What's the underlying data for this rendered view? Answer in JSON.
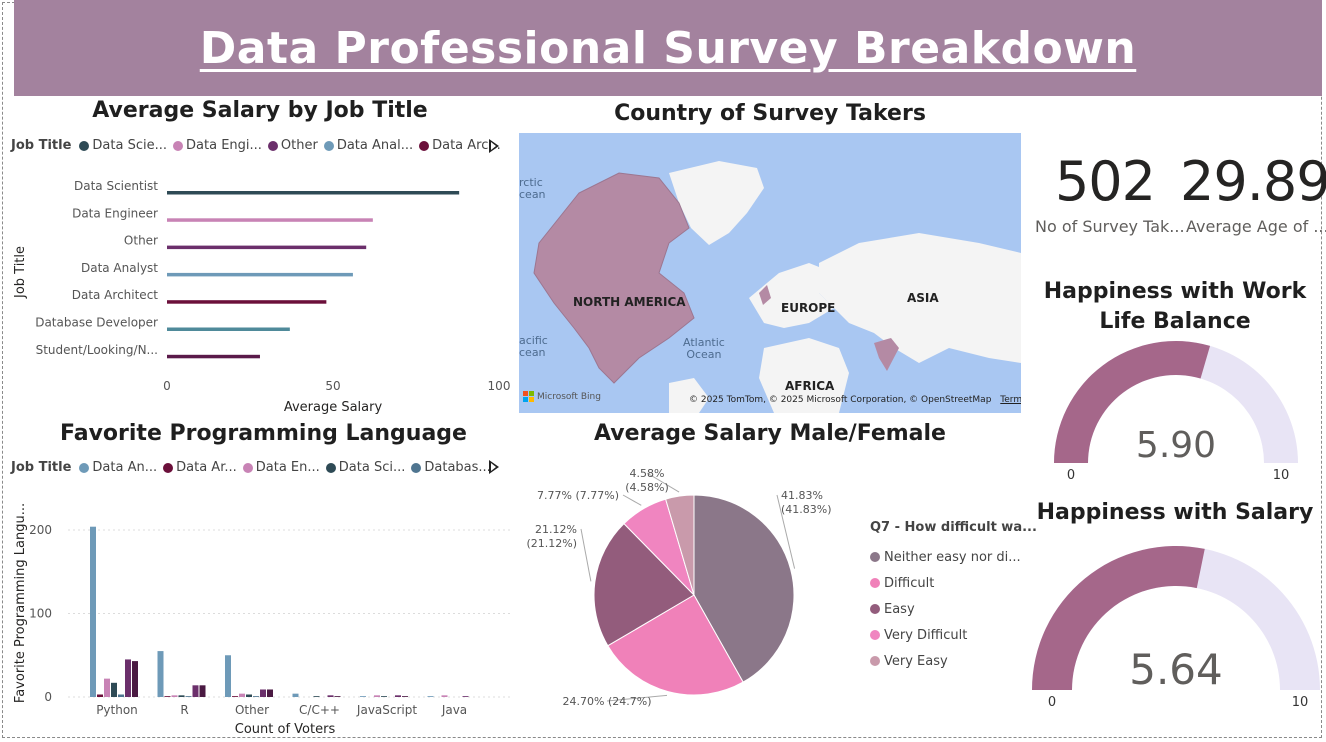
{
  "title": "Data Professional Survey Breakdown",
  "salary_by_job": {
    "title": "Average Salary by Job Title",
    "legend_title": "Job Title",
    "legend": [
      {
        "label": "Data Scie...",
        "color": "#2e4a55"
      },
      {
        "label": "Data Engi...",
        "color": "#c883b5"
      },
      {
        "label": "Other",
        "color": "#6b2f6b"
      },
      {
        "label": "Data Anal...",
        "color": "#6e9ab8"
      },
      {
        "label": "Data Arc...",
        "color": "#6b0f3a"
      }
    ],
    "chart_data": {
      "type": "bar",
      "orientation": "horizontal",
      "categories": [
        "Data Scientist",
        "Data Engineer",
        "Other",
        "Data Analyst",
        "Data Architect",
        "Database Developer",
        "Student/Looking/N..."
      ],
      "values": [
        88,
        62,
        60,
        56,
        48,
        37,
        28
      ],
      "colors": [
        "#2e4a55",
        "#c883b5",
        "#6b2f6b",
        "#6e9ab8",
        "#6b0f3a",
        "#4f8a9a",
        "#5a1a4a"
      ],
      "xlabel": "Average Salary",
      "ylabel": "Job Title",
      "xlim": [
        0,
        100
      ],
      "xticks": [
        "0",
        "50",
        "100"
      ]
    }
  },
  "programming": {
    "title": "Favorite Programming Language",
    "legend_title": "Job Title",
    "legend": [
      {
        "label": "Data An...",
        "color": "#6e9ab8"
      },
      {
        "label": "Data Ar...",
        "color": "#6b0f3a"
      },
      {
        "label": "Data En...",
        "color": "#c883b5"
      },
      {
        "label": "Data Sci...",
        "color": "#2e4a55"
      },
      {
        "label": "Databas...",
        "color": "#4f7590"
      }
    ],
    "chart_data": {
      "type": "bar",
      "categories": [
        "Python",
        "R",
        "Other",
        "C/C++",
        "JavaScript",
        "Java"
      ],
      "series": [
        {
          "name": "Data An...",
          "color": "#6e9ab8",
          "values": [
            204,
            55,
            50,
            4,
            1,
            1
          ]
        },
        {
          "name": "Data Ar...",
          "color": "#6b0f3a",
          "values": [
            3,
            1,
            1,
            0,
            0,
            0
          ]
        },
        {
          "name": "Data En...",
          "color": "#c883b5",
          "values": [
            22,
            2,
            4,
            0,
            2,
            2
          ]
        },
        {
          "name": "Data Sci...",
          "color": "#2e4a55",
          "values": [
            17,
            2,
            3,
            1,
            1,
            0
          ]
        },
        {
          "name": "Databas...",
          "color": "#4f7590",
          "values": [
            3,
            1,
            1,
            0,
            0,
            0
          ]
        },
        {
          "name": "",
          "color": "#6b2f6b",
          "values": [
            45,
            14,
            9,
            2,
            2,
            1
          ]
        },
        {
          "name": "",
          "color": "#4a1942",
          "values": [
            43,
            14,
            9,
            1,
            1,
            0
          ]
        }
      ],
      "xlabel": "Count of Voters",
      "ylabel": "Favorite Programming Langu...",
      "ylim": [
        0,
        230
      ],
      "yticks": [
        "0",
        "100",
        "200"
      ]
    }
  },
  "map": {
    "title": "Country of Survey Takers",
    "labels": {
      "north_america": "NORTH AMERICA",
      "europe": "EUROPE",
      "asia": "ASIA",
      "africa": "AFRICA"
    },
    "oceans": {
      "arctic": "rctic\ncean",
      "atlantic": "Atlantic\nOcean",
      "pacific": "acific\ncean"
    },
    "attribution": "© 2025 TomTom, © 2025 Microsoft Corporation, © OpenStreetMap",
    "terms": "Terms",
    "brand": "Microsoft Bing"
  },
  "kpis": {
    "survey_count": {
      "value": "502",
      "label": "No of Survey Tak..."
    },
    "avg_age": {
      "value": "29.89",
      "label": "Average Age of ..."
    }
  },
  "gauges": {
    "work_life": {
      "title": "Happiness with Work Life Balance",
      "value": 5.9,
      "display": "5.90",
      "min": "0",
      "max": "10",
      "fill_color": "#a5678a",
      "track_color": "#e8e4f5"
    },
    "salary": {
      "title": "Happiness with Salary",
      "value": 5.64,
      "display": "5.64",
      "min": "0",
      "max": "10",
      "fill_color": "#a5678a",
      "track_color": "#e8e4f5"
    }
  },
  "gender_salary": {
    "title": "Average Salary Male/Female",
    "legend_title": "Q7 - How difficult wa...",
    "chart_data": {
      "type": "pie",
      "slices": [
        {
          "label": "Neither easy nor di...",
          "value": 41.83,
          "data_label": "41.83%\n(41.83%)",
          "color": "#8b7789"
        },
        {
          "label": "Difficult",
          "value": 24.7,
          "data_label": "24.70% (24.7%)",
          "color": "#f081b9"
        },
        {
          "label": "Easy",
          "value": 21.12,
          "data_label": "21.12%\n(21.12%)",
          "color": "#935c7c"
        },
        {
          "label": "Very Difficult",
          "value": 7.77,
          "data_label": "7.77% (7.77%)",
          "color": "#f085c0"
        },
        {
          "label": "Very Easy",
          "value": 4.58,
          "data_label": "4.58%\n(4.58%)",
          "color": "#c99aab"
        }
      ]
    }
  }
}
